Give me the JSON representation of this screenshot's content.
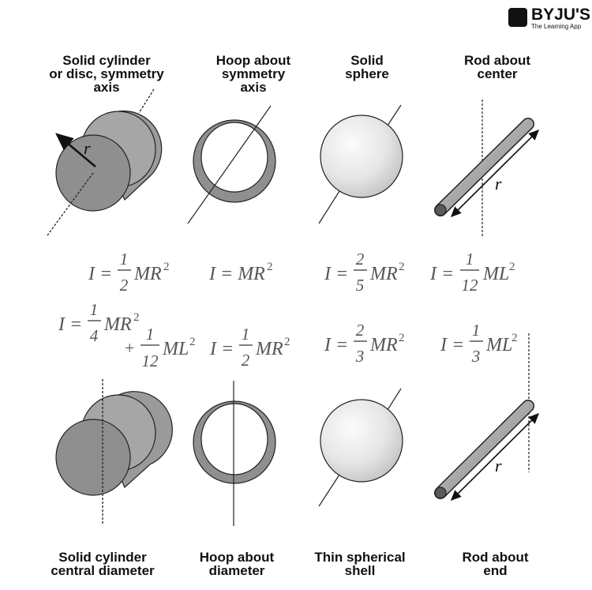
{
  "brand": {
    "name": "BYJU'S",
    "tagline": "The Learning App"
  },
  "top_labels": [
    [
      "Solid cylinder",
      "or disc, symmetry",
      "axis"
    ],
    [
      "Hoop about",
      "symmetry",
      "axis"
    ],
    [
      "Solid",
      "sphere"
    ],
    [
      "Rod about",
      "center"
    ]
  ],
  "bottom_labels": [
    [
      "Solid cylinder",
      "central diameter"
    ],
    [
      "Hoop about",
      "diameter"
    ],
    [
      "Thin spherical",
      "shell"
    ],
    [
      "Rod about",
      "end"
    ]
  ],
  "radius_symbol": "r",
  "formulas_top": [
    {
      "lhs": "I =",
      "num": "1",
      "den": "2",
      "rhs": "MR",
      "sup": "2"
    },
    {
      "lhs": "I = MR",
      "sup": "2"
    },
    {
      "lhs": "I =",
      "num": "2",
      "den": "5",
      "rhs": "MR",
      "sup": "2"
    },
    {
      "lhs": "I =",
      "num": "1",
      "den": "12",
      "rhs": "ML",
      "sup": "2"
    }
  ],
  "formulas_bottom": [
    {
      "lhs": "I =",
      "num": "1",
      "den": "4",
      "rhs": "MR",
      "sup": "2",
      "second": {
        "plus": "+",
        "num": "1",
        "den": "12",
        "rhs": "ML",
        "sup": "2"
      }
    },
    {
      "lhs": "I =",
      "num": "1",
      "den": "2",
      "rhs": "MR",
      "sup": "2"
    },
    {
      "lhs": "I =",
      "num": "2",
      "den": "3",
      "rhs": "MR",
      "sup": "2"
    },
    {
      "lhs": "I =",
      "num": "1",
      "den": "3",
      "rhs": "ML",
      "sup": "2"
    }
  ],
  "colors": {
    "dark_fill": "#9a9a9a",
    "light_fill": "#c4c4c4",
    "sphere_light": "#fafafa",
    "sphere_dark": "#c8c8c8",
    "ink": "#111111",
    "formula": "#555555"
  }
}
